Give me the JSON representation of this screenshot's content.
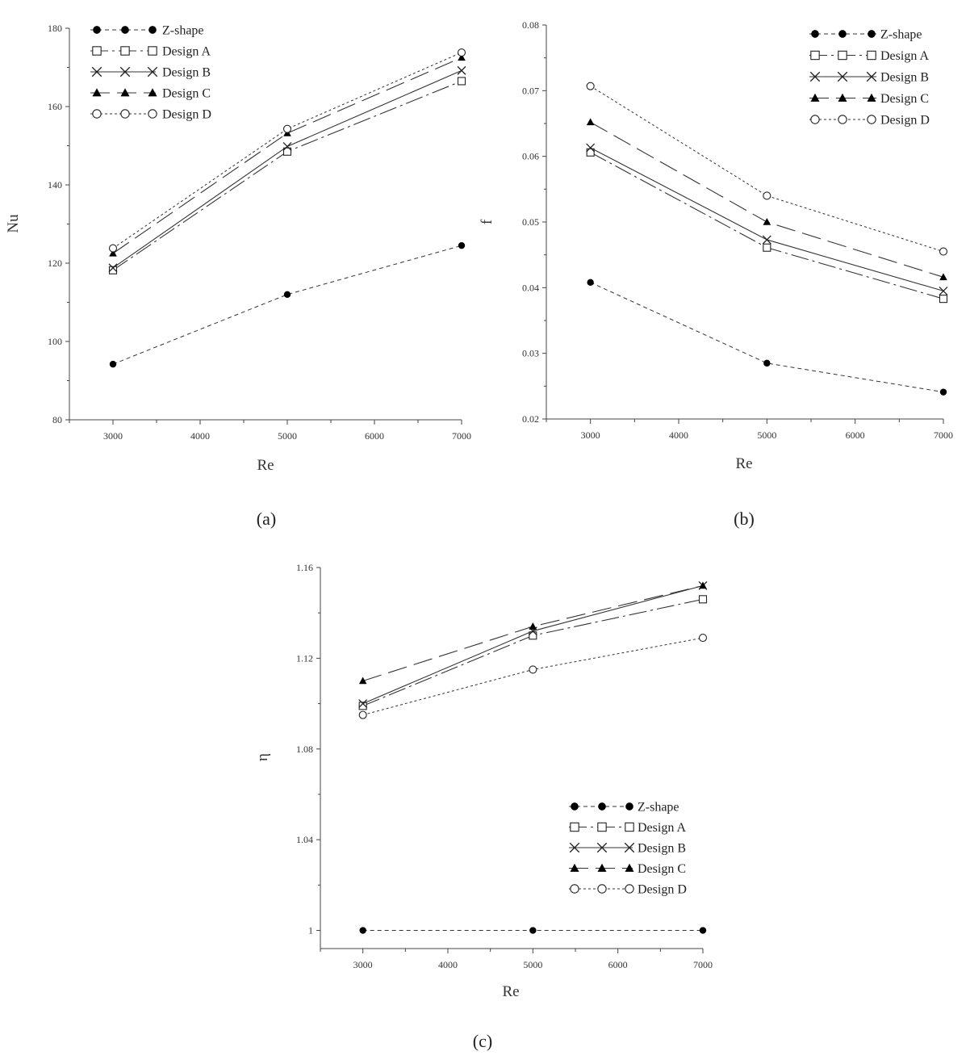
{
  "chart_data": [
    {
      "type": "line",
      "caption": "(a)",
      "xlabel": "Re",
      "ylabel": "Nu",
      "xlim": [
        2500,
        7000
      ],
      "ylim": [
        80,
        180
      ],
      "xticks": [
        "3000",
        "4000",
        "5000",
        "6000",
        "7000"
      ],
      "yticks": [
        "80",
        "100",
        "120",
        "140",
        "160",
        "180"
      ],
      "legend_position": "top-left",
      "x": [
        3000,
        5000,
        7000
      ],
      "series": [
        {
          "name": "Z-shape",
          "values": [
            94.2,
            112.0,
            124.5
          ]
        },
        {
          "name": "Design A",
          "values": [
            118.2,
            148.5,
            166.5
          ]
        },
        {
          "name": "Design B",
          "values": [
            118.8,
            149.8,
            169.2
          ]
        },
        {
          "name": "Design C",
          "values": [
            122.5,
            153.2,
            172.5
          ]
        },
        {
          "name": "Design D",
          "values": [
            123.8,
            154.3,
            173.8
          ]
        }
      ]
    },
    {
      "type": "line",
      "caption": "(b)",
      "xlabel": "Re",
      "ylabel": "f",
      "xlim": [
        2500,
        7000
      ],
      "ylim": [
        0.02,
        0.08
      ],
      "xticks": [
        "3000",
        "4000",
        "5000",
        "6000",
        "7000"
      ],
      "yticks": [
        "0.02",
        "0.03",
        "0.04",
        "0.05",
        "0.06",
        "0.07",
        "0.08"
      ],
      "legend_position": "top-right",
      "x": [
        3000,
        5000,
        7000
      ],
      "series": [
        {
          "name": "Z-shape",
          "values": [
            0.0408,
            0.0285,
            0.0241
          ]
        },
        {
          "name": "Design A",
          "values": [
            0.0606,
            0.0461,
            0.0383
          ]
        },
        {
          "name": "Design B",
          "values": [
            0.0613,
            0.0473,
            0.0395
          ]
        },
        {
          "name": "Design C",
          "values": [
            0.0652,
            0.05,
            0.0416
          ]
        },
        {
          "name": "Design D",
          "values": [
            0.0707,
            0.054,
            0.0455
          ]
        }
      ]
    },
    {
      "type": "line",
      "caption": "(c)",
      "xlabel": "Re",
      "ylabel": "η",
      "xlim": [
        2500,
        7000
      ],
      "ylim": [
        0.992,
        1.16
      ],
      "xticks": [
        "3000",
        "4000",
        "5000",
        "6000",
        "7000"
      ],
      "yticks": [
        "1",
        "1.04",
        "1.08",
        "1.12",
        "1.16"
      ],
      "legend_position": "bottom-right",
      "x": [
        3000,
        5000,
        7000
      ],
      "series": [
        {
          "name": "Z-shape",
          "values": [
            1.0,
            1.0,
            1.0
          ]
        },
        {
          "name": "Design A",
          "values": [
            1.099,
            1.13,
            1.146
          ]
        },
        {
          "name": "Design B",
          "values": [
            1.1,
            1.132,
            1.152
          ]
        },
        {
          "name": "Design C",
          "values": [
            1.11,
            1.134,
            1.152
          ]
        },
        {
          "name": "Design D",
          "values": [
            1.095,
            1.115,
            1.129
          ]
        }
      ]
    }
  ]
}
